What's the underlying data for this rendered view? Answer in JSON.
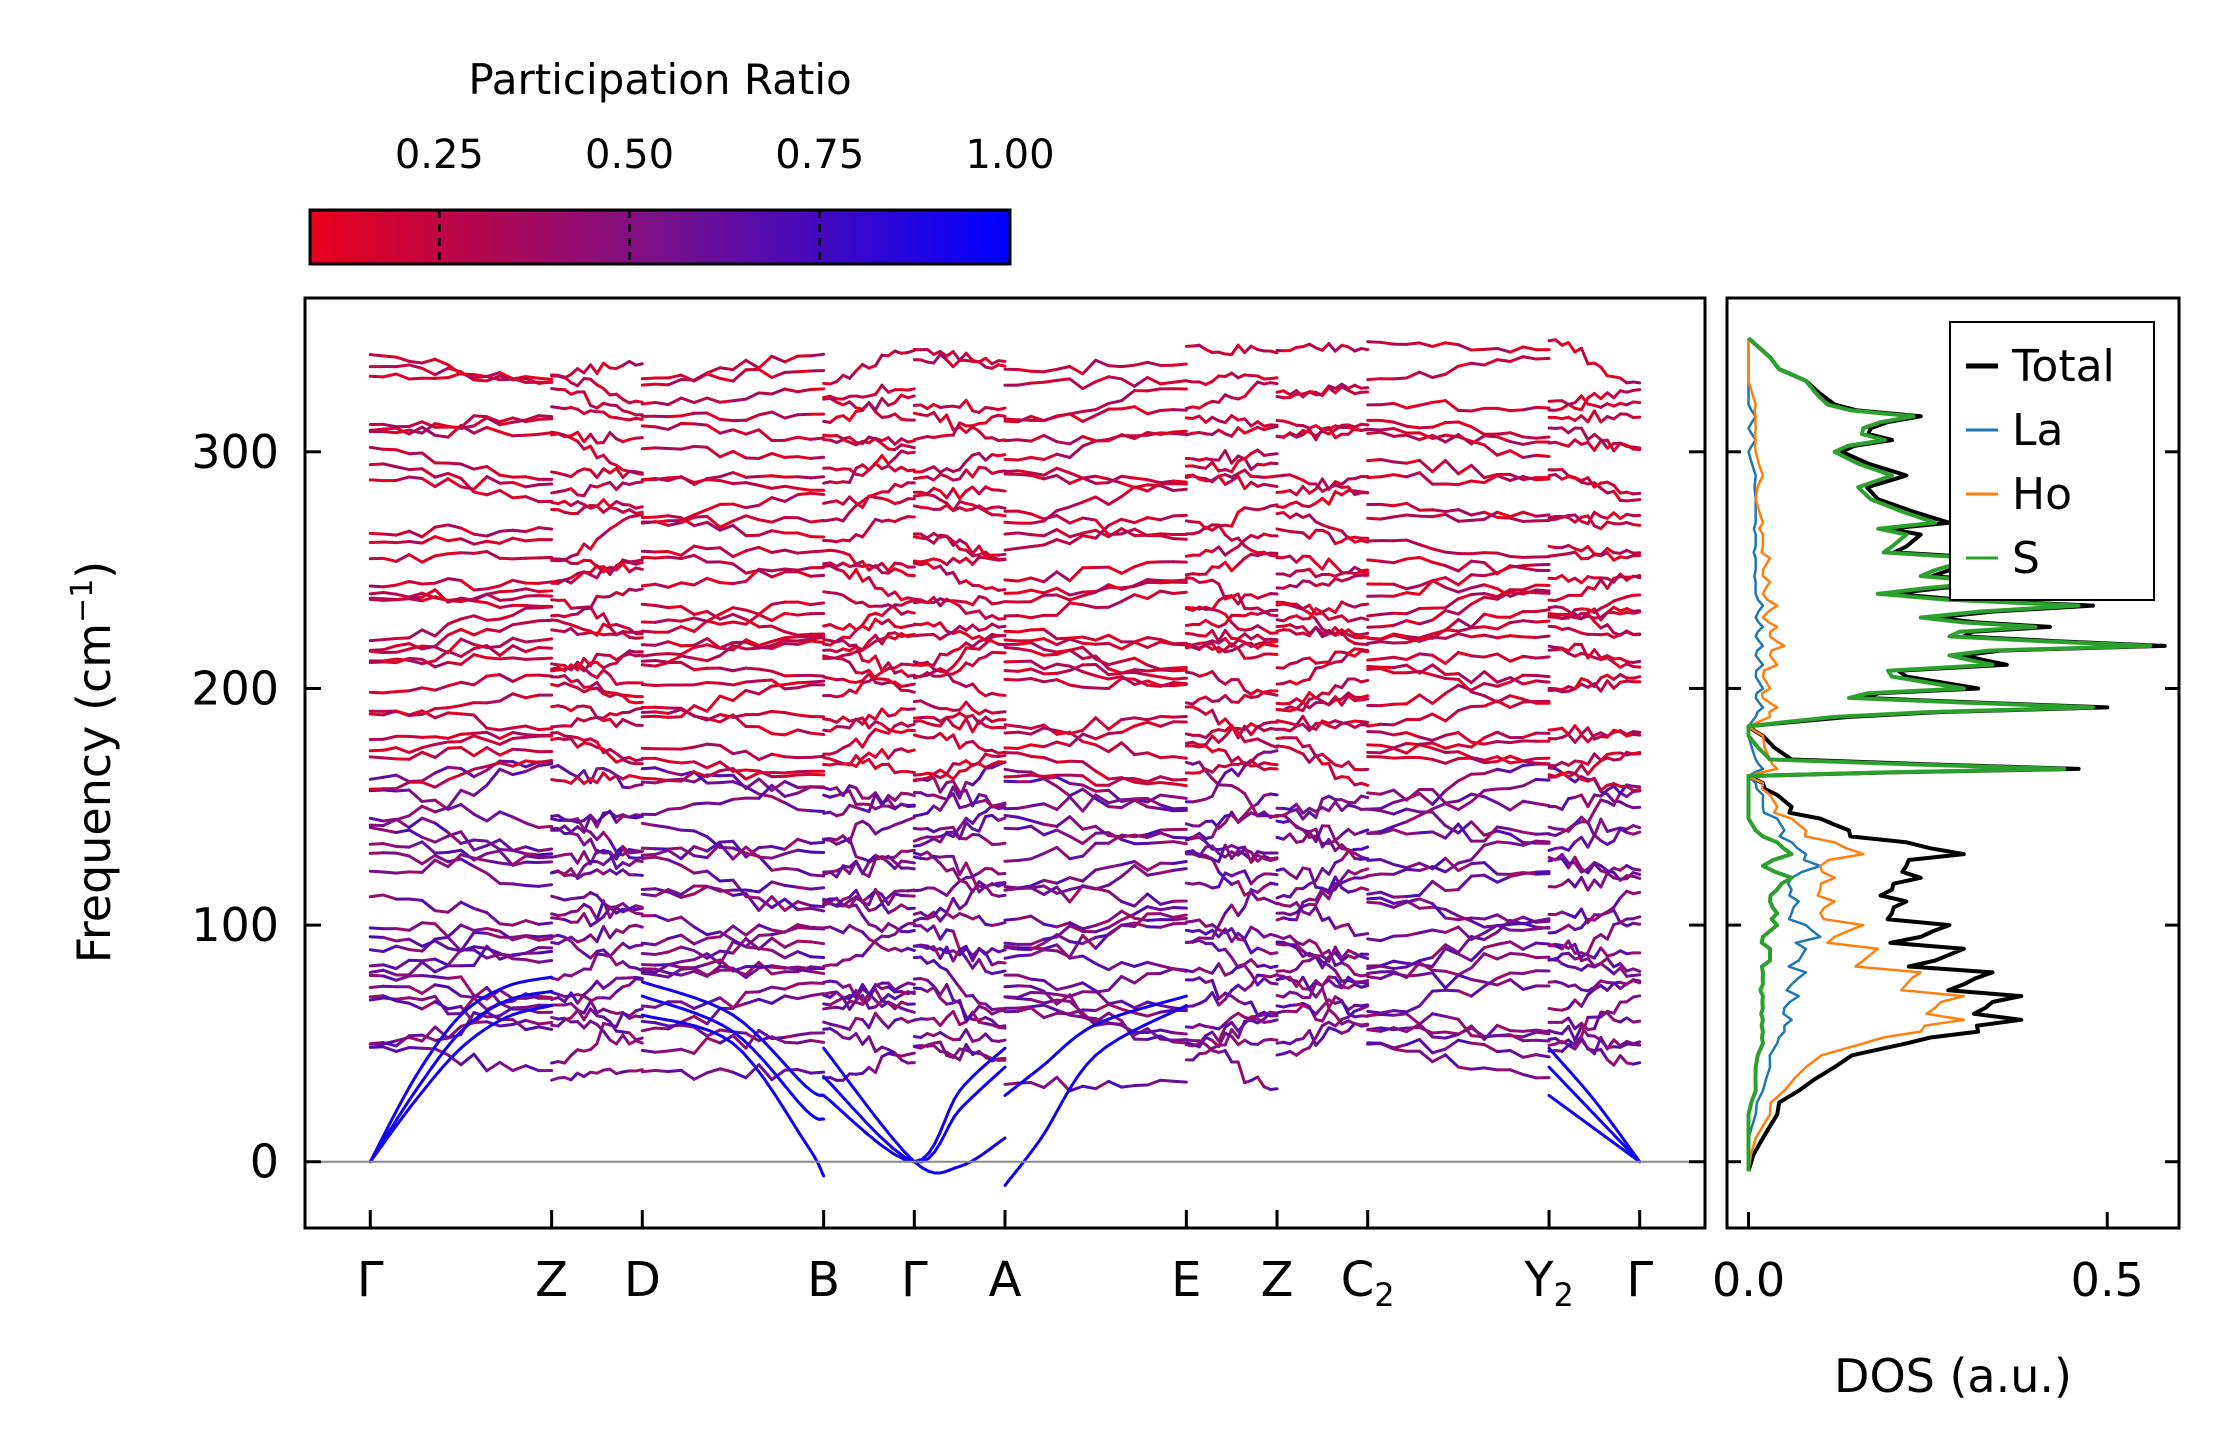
{
  "colorbar": {
    "title": "Participation Ratio",
    "ticks": [
      0.25,
      0.5,
      0.75,
      1.0
    ],
    "tick_labels": [
      "0.25",
      "0.50",
      "0.75",
      "1.00"
    ],
    "range": [
      0.08,
      1.0
    ],
    "color_low": "#e8001a",
    "color_mid": "#7a1089",
    "color_high": "#0000ff"
  },
  "chart_data": [
    {
      "type": "line",
      "name": "phonon-band-structure",
      "title": "",
      "xlabel": "",
      "ylabel": "Frequency (cm",
      "ylabel_unit_sup": "−1",
      "ylabel_close": ")",
      "ylim": [
        -28,
        365
      ],
      "yticks": [
        0,
        100,
        200,
        300
      ],
      "ytick_labels": [
        "0",
        "100",
        "200",
        "300"
      ],
      "high_symmetry_points": [
        {
          "label": "Γ",
          "sub": "",
          "x": 0.0
        },
        {
          "label": "Z",
          "sub": "",
          "x": 1.0
        },
        {
          "label": "D",
          "sub": "",
          "x": 1.5
        },
        {
          "label": "B",
          "sub": "",
          "x": 2.5
        },
        {
          "label": "Γ",
          "sub": "",
          "x": 3.0
        },
        {
          "label": "A",
          "sub": "",
          "x": 3.5
        },
        {
          "label": "E",
          "sub": "",
          "x": 4.5
        },
        {
          "label": "Z",
          "sub": "",
          "x": 5.0
        },
        {
          "label": "C",
          "sub": "2",
          "x": 5.5
        },
        {
          "label": "Y",
          "sub": "2",
          "x": 6.5
        },
        {
          "label": "Γ",
          "sub": "",
          "x": 7.0
        }
      ],
      "path_segments": [
        [
          0,
          1
        ],
        [
          1,
          1.5
        ],
        [
          1.5,
          2.5
        ],
        [
          2.5,
          3
        ],
        [
          3,
          3.5
        ],
        [
          3.5,
          4.5
        ],
        [
          4.5,
          5
        ],
        [
          5,
          5.5
        ],
        [
          5.5,
          6.5
        ],
        [
          6.5,
          7
        ]
      ],
      "xlim": [
        -0.36,
        7.36
      ],
      "zero_line": 0,
      "acoustic_branches": [
        {
          "name": "acoustic-1",
          "x": [
            0,
            0.25,
            0.5,
            0.75,
            1.0
          ],
          "y": [
            0,
            26,
            48,
            61,
            66
          ]
        },
        {
          "name": "acoustic-2",
          "x": [
            0,
            0.25,
            0.5,
            0.75,
            1.0
          ],
          "y": [
            0,
            30,
            55,
            68,
            72
          ]
        },
        {
          "name": "acoustic-3",
          "x": [
            0,
            0.25,
            0.5,
            0.75,
            1.0
          ],
          "y": [
            0,
            36,
            62,
            74,
            78
          ]
        },
        {
          "name": "acoustic-gamma-right-1",
          "x": [
            6.5,
            6.75,
            7.0
          ],
          "y": [
            28,
            14,
            0
          ]
        },
        {
          "name": "acoustic-gamma-right-2",
          "x": [
            6.5,
            6.75,
            7.0
          ],
          "y": [
            40,
            20,
            0
          ]
        },
        {
          "name": "acoustic-gamma-right-3",
          "x": [
            6.5,
            6.75,
            7.0
          ],
          "y": [
            48,
            26,
            0
          ]
        },
        {
          "name": "acoustic-b-1",
          "x": [
            1.5,
            2.0,
            2.4,
            2.5
          ],
          "y": [
            62,
            50,
            8,
            -6
          ]
        },
        {
          "name": "acoustic-b-2",
          "x": [
            1.5,
            2.0,
            2.4,
            2.5
          ],
          "y": [
            70,
            55,
            22,
            18
          ]
        },
        {
          "name": "acoustic-b-3",
          "x": [
            1.5,
            2.0,
            2.4,
            2.5
          ],
          "y": [
            76,
            62,
            32,
            28
          ]
        },
        {
          "name": "acoustic-gamma-mid-1",
          "x": [
            2.5,
            3.0,
            3.25,
            3.5
          ],
          "y": [
            48,
            0,
            -2,
            10
          ]
        },
        {
          "name": "acoustic-gamma-mid-2",
          "x": [
            2.5,
            3.0,
            3.25,
            3.5
          ],
          "y": [
            36,
            0,
            22,
            40
          ]
        },
        {
          "name": "acoustic-gamma-mid-3",
          "x": [
            2.5,
            3.0,
            3.25,
            3.5
          ],
          "y": [
            28,
            0,
            30,
            48
          ]
        },
        {
          "name": "acoustic-a-1",
          "x": [
            3.5,
            3.7,
            4.0,
            4.5
          ],
          "y": [
            -10,
            10,
            45,
            66
          ]
        },
        {
          "name": "acoustic-a-2",
          "x": [
            3.5,
            3.7,
            4.0,
            4.5
          ],
          "y": [
            28,
            40,
            58,
            70
          ]
        }
      ],
      "band_level_sets": {
        "low_optical": [
          44,
          55,
          58,
          62,
          66,
          70,
          78,
          82,
          88,
          92,
          98,
          104,
          112,
          118,
          124,
          128,
          134,
          140,
          148,
          156,
          160
        ],
        "mid_optical": [
          166,
          170,
          176,
          184,
          190,
          196,
          202,
          208,
          214,
          218,
          224,
          228,
          232,
          238,
          244,
          248,
          256,
          264,
          272,
          280,
          286,
          292,
          300,
          306,
          314,
          322,
          330,
          338
        ]
      }
    },
    {
      "type": "line",
      "name": "density-of-states",
      "xlabel": "DOS (a.u.)",
      "ylabel": "",
      "xlim": [
        -0.03,
        0.6
      ],
      "xticks": [
        0.0,
        0.5
      ],
      "xtick_labels": [
        "0.0",
        "0.5"
      ],
      "legend_position": "top-right",
      "series": [
        {
          "name": "Total",
          "color": "#000000"
        },
        {
          "name": "La",
          "color": "#1f77b4"
        },
        {
          "name": "Ho",
          "color": "#ff7f0e"
        },
        {
          "name": "S",
          "color": "#2ca02c"
        }
      ],
      "frequency": [
        -4,
        10,
        20,
        30,
        40,
        50,
        55,
        60,
        65,
        70,
        75,
        80,
        85,
        90,
        95,
        100,
        105,
        110,
        115,
        120,
        125,
        130,
        135,
        140,
        145,
        150,
        155,
        160,
        163,
        166,
        170,
        180,
        184,
        188,
        192,
        196,
        200,
        205,
        210,
        214,
        218,
        222,
        226,
        230,
        235,
        240,
        245,
        250,
        255,
        260,
        265,
        270,
        280,
        290,
        300,
        305,
        310,
        315,
        320,
        330,
        340,
        348
      ],
      "total": [
        0,
        0.02,
        0.04,
        0.07,
        0.12,
        0.22,
        0.32,
        0.38,
        0.33,
        0.38,
        0.3,
        0.34,
        0.26,
        0.3,
        0.24,
        0.28,
        0.2,
        0.22,
        0.2,
        0.24,
        0.22,
        0.3,
        0.22,
        0.14,
        0.1,
        0.06,
        0.04,
        0.02,
        0.0,
        0.46,
        0.06,
        0.02,
        0.0,
        0.14,
        0.5,
        0.16,
        0.32,
        0.22,
        0.36,
        0.3,
        0.58,
        0.3,
        0.42,
        0.26,
        0.48,
        0.2,
        0.36,
        0.28,
        0.34,
        0.22,
        0.24,
        0.28,
        0.18,
        0.22,
        0.13,
        0.2,
        0.17,
        0.24,
        0.12,
        0.08,
        0.03,
        0
      ],
      "la": [
        0,
        0.0,
        0.01,
        0.02,
        0.03,
        0.04,
        0.05,
        0.06,
        0.05,
        0.07,
        0.06,
        0.08,
        0.07,
        0.08,
        0.1,
        0.08,
        0.06,
        0.07,
        0.06,
        0.06,
        0.1,
        0.08,
        0.06,
        0.05,
        0.04,
        0.02,
        0.02,
        0.01,
        0.0,
        0.02,
        0.01,
        0.0,
        0.0,
        0.01,
        0.02,
        0.01,
        0.02,
        0.01,
        0.02,
        0.01,
        0.02,
        0.01,
        0.02,
        0.01,
        0.02,
        0.01,
        0.01,
        0.01,
        0.01,
        0.01,
        0.01,
        0.01,
        0.01,
        0.01,
        0.0,
        0.01,
        0.0,
        0.01,
        0.0,
        0.0,
        0.0,
        0
      ],
      "ho": [
        0,
        0.01,
        0.03,
        0.05,
        0.08,
        0.16,
        0.24,
        0.3,
        0.26,
        0.3,
        0.22,
        0.24,
        0.16,
        0.18,
        0.12,
        0.16,
        0.1,
        0.12,
        0.1,
        0.12,
        0.1,
        0.16,
        0.12,
        0.08,
        0.06,
        0.04,
        0.03,
        0.02,
        0.0,
        0.04,
        0.03,
        0.02,
        0.0,
        0.03,
        0.04,
        0.02,
        0.03,
        0.02,
        0.04,
        0.03,
        0.05,
        0.03,
        0.04,
        0.02,
        0.04,
        0.02,
        0.03,
        0.02,
        0.03,
        0.02,
        0.02,
        0.02,
        0.01,
        0.02,
        0.01,
        0.01,
        0.01,
        0.01,
        0.01,
        0.0,
        0.0,
        0
      ],
      "s": [
        0,
        0.0,
        0.0,
        0.01,
        0.01,
        0.02,
        0.02,
        0.02,
        0.02,
        0.02,
        0.02,
        0.02,
        0.03,
        0.03,
        0.02,
        0.04,
        0.04,
        0.03,
        0.04,
        0.06,
        0.02,
        0.06,
        0.04,
        0.01,
        0.0,
        0.0,
        0.0,
        0.0,
        0.0,
        0.44,
        0.03,
        0.0,
        0.0,
        0.12,
        0.48,
        0.14,
        0.3,
        0.2,
        0.34,
        0.28,
        0.56,
        0.28,
        0.4,
        0.24,
        0.46,
        0.18,
        0.34,
        0.26,
        0.32,
        0.2,
        0.22,
        0.26,
        0.17,
        0.2,
        0.12,
        0.19,
        0.16,
        0.23,
        0.11,
        0.08,
        0.03,
        0
      ]
    }
  ]
}
